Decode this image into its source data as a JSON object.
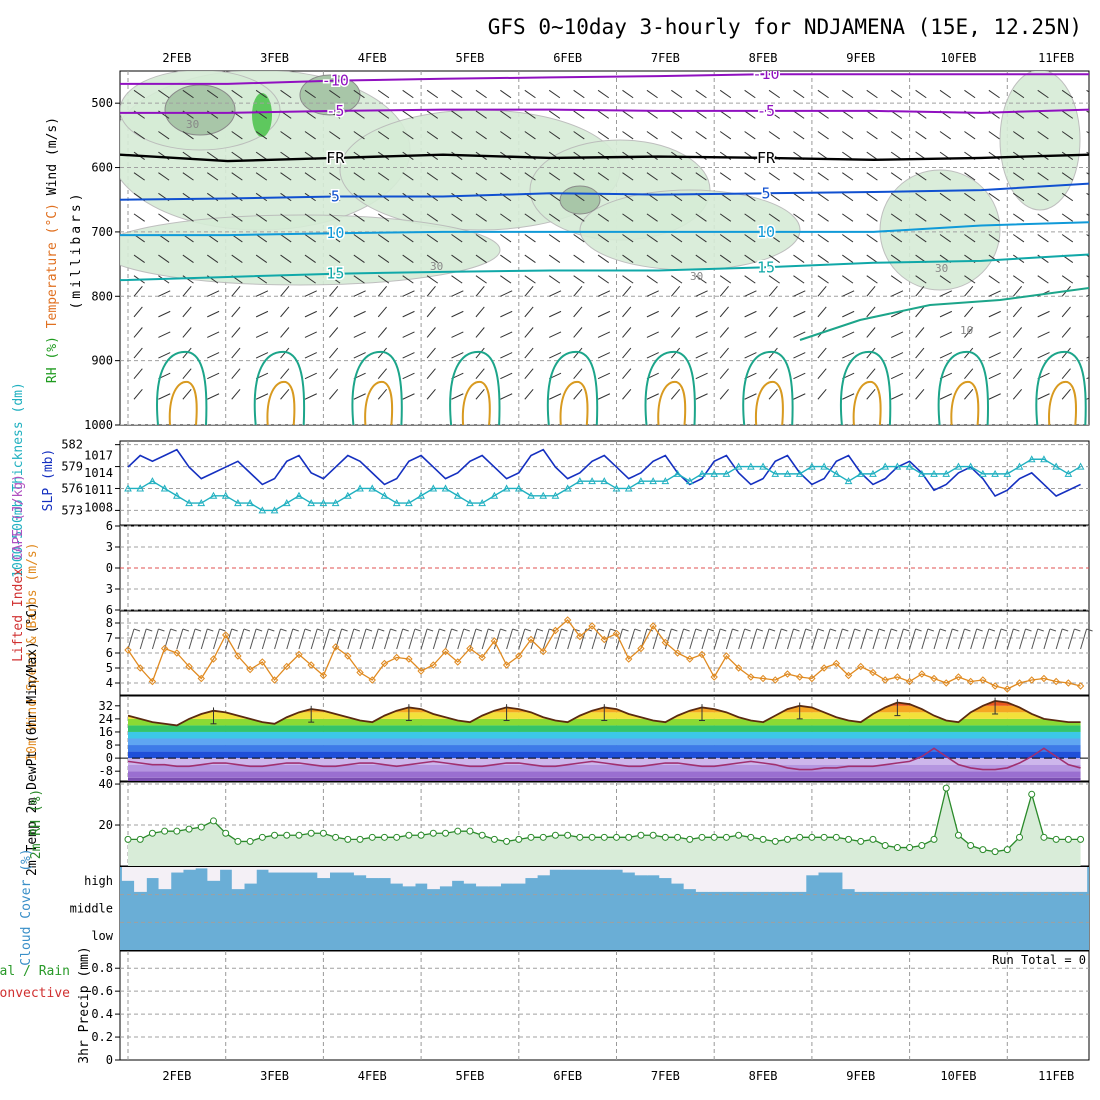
{
  "page": {
    "title": "GFS 0~10day 3-hourly for NDJAMENA (15E, 12.25N)"
  },
  "chart_data": [
    {
      "panel": "upper-air",
      "type": "heatmap",
      "ylabel_parts": [
        {
          "text": "Wind (m/s)",
          "color": "#000000"
        },
        {
          "text": "Temperature (°C)",
          "color": "#e07020"
        },
        {
          "text": "RH (%)",
          "color": "#1f9b1f"
        }
      ],
      "ylabel_unit": "(millibars)",
      "y_ticks": [
        500,
        600,
        700,
        800,
        900,
        1000
      ],
      "ylim": [
        1000,
        450
      ],
      "date_labels": [
        "2FEB",
        "3FEB",
        "4FEB",
        "5FEB",
        "6FEB",
        "7FEB",
        "8FEB",
        "9FEB",
        "10FEB",
        "11FEB"
      ],
      "isotherms": [
        {
          "label": "-10",
          "color": "#9010c0",
          "level_mb": [
            470,
            470,
            465,
            462,
            460,
            458,
            455,
            455,
            455,
            455
          ]
        },
        {
          "label": "-5",
          "color": "#9010c0",
          "level_mb": [
            515,
            515,
            512,
            510,
            510,
            512,
            512,
            512,
            515,
            510
          ]
        },
        {
          "label": "FR",
          "color": "#000000",
          "level_mb": [
            580,
            590,
            585,
            580,
            585,
            583,
            585,
            588,
            585,
            580
          ]
        },
        {
          "label": "5",
          "color": "#1050d0",
          "level_mb": [
            650,
            648,
            645,
            645,
            640,
            642,
            640,
            638,
            635,
            625
          ]
        },
        {
          "label": "10",
          "color": "#109ad8",
          "level_mb": [
            705,
            705,
            702,
            700,
            700,
            700,
            700,
            700,
            690,
            685
          ]
        },
        {
          "label": "15",
          "color": "#10a8a8",
          "level_mb": [
            775,
            770,
            765,
            762,
            760,
            760,
            755,
            748,
            745,
            735
          ]
        }
      ],
      "rh_contour_labels": [
        "30",
        "30",
        "30",
        "30",
        "10"
      ]
    },
    {
      "panel": "thickness-slp",
      "type": "line",
      "ylabel_left": "1000-500mb Thickness (dm)",
      "ylabel_right": "SLP (mb)",
      "thickness_ticks": [
        573,
        576,
        579,
        582
      ],
      "slp_ticks": [
        1008,
        1011,
        1014,
        1017
      ],
      "series": [
        {
          "name": "SLP (mb)",
          "color": "#1530c0",
          "values": [
            1015,
            1017,
            1016,
            1017,
            1018,
            1015,
            1013,
            1014,
            1015,
            1016,
            1014,
            1012,
            1013,
            1016,
            1017,
            1014,
            1013,
            1015,
            1017,
            1016,
            1014,
            1012,
            1013,
            1016,
            1017,
            1015,
            1013,
            1014,
            1016,
            1017,
            1015,
            1013,
            1014,
            1017,
            1018,
            1015,
            1013,
            1014,
            1016,
            1017,
            1015,
            1013,
            1014,
            1016,
            1017,
            1014,
            1012,
            1013,
            1016,
            1017,
            1014,
            1012,
            1013,
            1016,
            1017,
            1014,
            1012,
            1013,
            1016,
            1017,
            1014,
            1012,
            1013,
            1015,
            1016,
            1014,
            1011,
            1012,
            1014,
            1015,
            1013,
            1010,
            1011,
            1013,
            1014,
            1012,
            1010,
            1011,
            1012
          ]
        },
        {
          "name": "1000-500mb Thickness (dm)",
          "color": "#20b0c0",
          "values": [
            576,
            576,
            577,
            576,
            575,
            574,
            574,
            575,
            575,
            574,
            574,
            573,
            573,
            574,
            575,
            574,
            574,
            574,
            575,
            576,
            576,
            575,
            574,
            574,
            575,
            576,
            576,
            575,
            574,
            574,
            575,
            576,
            576,
            575,
            575,
            575,
            576,
            577,
            577,
            577,
            576,
            576,
            577,
            577,
            577,
            578,
            577,
            578,
            578,
            578,
            579,
            579,
            579,
            578,
            578,
            578,
            579,
            579,
            578,
            577,
            578,
            578,
            579,
            579,
            579,
            578,
            578,
            578,
            579,
            579,
            578,
            578,
            578,
            579,
            580,
            580,
            579,
            578,
            579
          ]
        }
      ]
    },
    {
      "panel": "instability",
      "type": "line",
      "ylabel_parts": [
        {
          "text": "Lifted Index",
          "color": "#d03030"
        },
        {
          "text": "CAPE (J/kg)",
          "color": "#b050c0"
        }
      ],
      "y_ticks": [
        -6,
        -3,
        0,
        3,
        6
      ],
      "ylim": [
        -6,
        6
      ],
      "reference_line": 0
    },
    {
      "panel": "wind10m",
      "type": "line",
      "ylabel": "10m Wind Speed & Barbs (m/s)",
      "y_ticks": [
        4,
        5,
        6,
        7,
        8
      ],
      "ylim": [
        3.2,
        8.8
      ],
      "series": [
        {
          "name": "10m Wind Speed",
          "color": "#e08a20",
          "values": [
            6.2,
            5.0,
            4.1,
            6.3,
            6.0,
            5.1,
            4.3,
            5.6,
            7.2,
            5.8,
            4.9,
            5.4,
            4.2,
            5.1,
            5.9,
            5.2,
            4.5,
            6.4,
            5.8,
            4.7,
            4.2,
            5.3,
            5.7,
            5.6,
            4.8,
            5.2,
            6.1,
            5.4,
            6.3,
            5.7,
            6.8,
            5.2,
            5.8,
            6.9,
            6.1,
            7.5,
            8.2,
            7.1,
            7.8,
            6.9,
            7.3,
            5.6,
            6.3,
            7.8,
            6.7,
            6.0,
            5.6,
            5.9,
            4.4,
            5.8,
            5.0,
            4.4,
            4.3,
            4.2,
            4.6,
            4.4,
            4.3,
            5.0,
            5.3,
            4.5,
            5.1,
            4.7,
            4.2,
            4.4,
            4.1,
            4.6,
            4.3,
            4.0,
            4.4,
            4.1,
            4.2,
            3.8,
            3.6,
            4.0,
            4.2,
            4.3,
            4.1,
            4.0,
            3.8
          ]
        }
      ]
    },
    {
      "panel": "temp2m",
      "type": "area",
      "ylabel": "2m Temp 2m DewPt (6hr Min/Max) (°C)",
      "y_ticks": [
        -8,
        0,
        8,
        16,
        24,
        32
      ],
      "ylim": [
        -14,
        38
      ],
      "series": [
        {
          "name": "2m Temp",
          "color": "#5a2a10",
          "values": [
            26,
            24,
            22,
            21,
            20,
            24,
            27,
            29,
            28,
            26,
            24,
            22,
            21,
            25,
            28,
            30,
            29,
            27,
            25,
            23,
            22,
            26,
            29,
            31,
            30,
            27,
            25,
            23,
            22,
            26,
            29,
            31,
            30,
            28,
            25,
            23,
            22,
            26,
            29,
            31,
            30,
            27,
            25,
            23,
            22,
            26,
            29,
            31,
            30,
            28,
            25,
            23,
            22,
            26,
            30,
            32,
            31,
            28,
            25,
            23,
            22,
            27,
            31,
            34,
            33,
            30,
            26,
            23,
            22,
            28,
            32,
            35,
            34,
            31,
            27,
            24,
            23,
            22,
            22
          ]
        },
        {
          "name": "2m DewPt",
          "color": "#a03070",
          "values": [
            -2,
            -3,
            -4,
            -4,
            -5,
            -5,
            -4,
            -3,
            -3,
            -4,
            -5,
            -5,
            -4,
            -3,
            -3,
            -4,
            -5,
            -5,
            -4,
            -3,
            -3,
            -4,
            -5,
            -4,
            -3,
            -2,
            -3,
            -4,
            -5,
            -5,
            -4,
            -3,
            -3,
            -4,
            -5,
            -5,
            -4,
            -3,
            -2,
            -3,
            -4,
            -5,
            -5,
            -4,
            -3,
            -3,
            -4,
            -5,
            -5,
            -4,
            -3,
            -2,
            -3,
            -4,
            -6,
            -7,
            -7,
            -6,
            -6,
            -5,
            -5,
            -5,
            -4,
            -3,
            -2,
            1,
            6,
            1,
            -4,
            -6,
            -7,
            -7,
            -6,
            -3,
            1,
            6,
            1,
            -4,
            -6
          ]
        }
      ]
    },
    {
      "panel": "rh2m",
      "type": "area",
      "ylabel": "2m RH (%)",
      "y_ticks": [
        20,
        40
      ],
      "ylim": [
        0,
        41
      ],
      "series": [
        {
          "name": "2m RH",
          "color": "#2a8a2a",
          "values": [
            13,
            13,
            16,
            17,
            17,
            18,
            19,
            22,
            16,
            12,
            12,
            14,
            15,
            15,
            15,
            16,
            16,
            14,
            13,
            13,
            14,
            14,
            14,
            15,
            15,
            16,
            16,
            17,
            17,
            15,
            13,
            12,
            13,
            14,
            14,
            15,
            15,
            14,
            14,
            14,
            14,
            14,
            15,
            15,
            14,
            14,
            13,
            14,
            14,
            14,
            15,
            14,
            13,
            12,
            13,
            14,
            14,
            14,
            14,
            13,
            12,
            13,
            10,
            9,
            9,
            10,
            13,
            38,
            15,
            10,
            8,
            7,
            8,
            14,
            35,
            14,
            13,
            13,
            13
          ]
        }
      ]
    },
    {
      "panel": "cloud",
      "type": "area",
      "ylabel": "Cloud Cover (%)",
      "layer_labels": [
        "high",
        "middle",
        "low"
      ],
      "high_coverage": [
        50,
        10,
        60,
        20,
        80,
        90,
        95,
        50,
        90,
        20,
        40,
        90,
        80,
        80,
        80,
        80,
        60,
        80,
        80,
        70,
        60,
        60,
        40,
        30,
        40,
        20,
        30,
        50,
        40,
        30,
        30,
        40,
        40,
        60,
        70,
        90,
        90,
        90,
        90,
        90,
        90,
        80,
        70,
        70,
        60,
        40,
        20,
        10,
        10,
        10,
        10,
        10,
        10,
        10,
        10,
        10,
        70,
        80,
        80,
        20,
        10,
        10,
        10,
        10,
        10,
        10,
        10,
        10,
        10,
        10,
        10,
        10,
        10,
        10,
        10,
        10,
        10,
        10,
        10
      ]
    },
    {
      "panel": "precip",
      "type": "bar",
      "ylabel_parts": [
        {
          "text": "Total / Rain",
          "color": "#2a9a2a"
        },
        {
          "text": "Convective",
          "color": "#d03030"
        }
      ],
      "ylabel_unit": "3hr Precip (mm)",
      "y_ticks": [
        0,
        0.2,
        0.4,
        0.6,
        0.8
      ],
      "ylim": [
        0,
        0.95
      ],
      "run_total": "Run Total = 0",
      "values": []
    }
  ]
}
